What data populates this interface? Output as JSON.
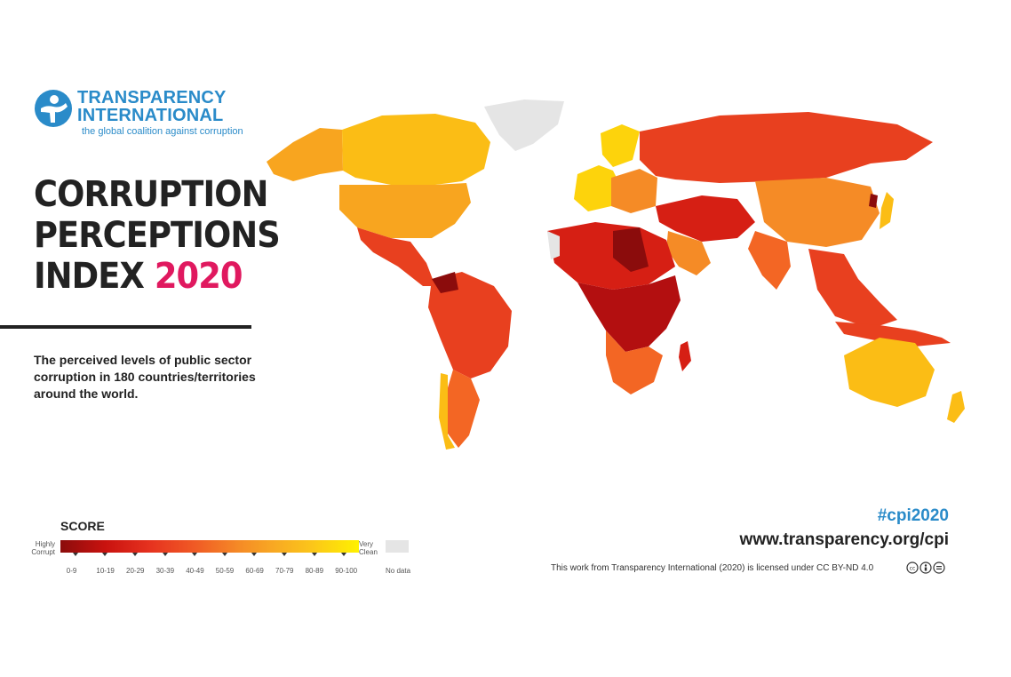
{
  "logo": {
    "line1": "TRANSPARENCY",
    "line2": "INTERNATIONAL",
    "tagline": "the global coalition against corruption"
  },
  "title": {
    "line1": "CORRUPTION",
    "line2": "PERCEPTIONS",
    "line3_prefix": "INDEX",
    "year": "2020"
  },
  "description": "The perceived levels of public sector corruption in 180 countries/territories around the world.",
  "legend": {
    "title": "SCORE",
    "low_label": "Highly Corrupt",
    "high_label": "Very Clean",
    "nodata_label": "No data",
    "ranges": [
      "0-9",
      "10-19",
      "20-29",
      "30-39",
      "40-49",
      "50-59",
      "60-69",
      "70-79",
      "80-89",
      "90-100"
    ]
  },
  "footer": {
    "hashtag": "#cpi2020",
    "url": "www.transparency.org/cpi",
    "license": "This work from Transparency International (2020) is licensed under CC BY-ND 4.0"
  },
  "colors": {
    "brand_blue": "#2a8bc9",
    "year_pink": "#e0195f",
    "score_0_9": "#8b0c0c",
    "score_10_19": "#b30f10",
    "score_20_29": "#d61f14",
    "score_30_39": "#e8401f",
    "score_40_49": "#f36624",
    "score_50_59": "#f58b26",
    "score_60_69": "#f8a51f",
    "score_70_79": "#fbbd15",
    "score_80_89": "#fdd30c",
    "score_90_100": "#fff100",
    "no_data": "#e5e5e5"
  }
}
